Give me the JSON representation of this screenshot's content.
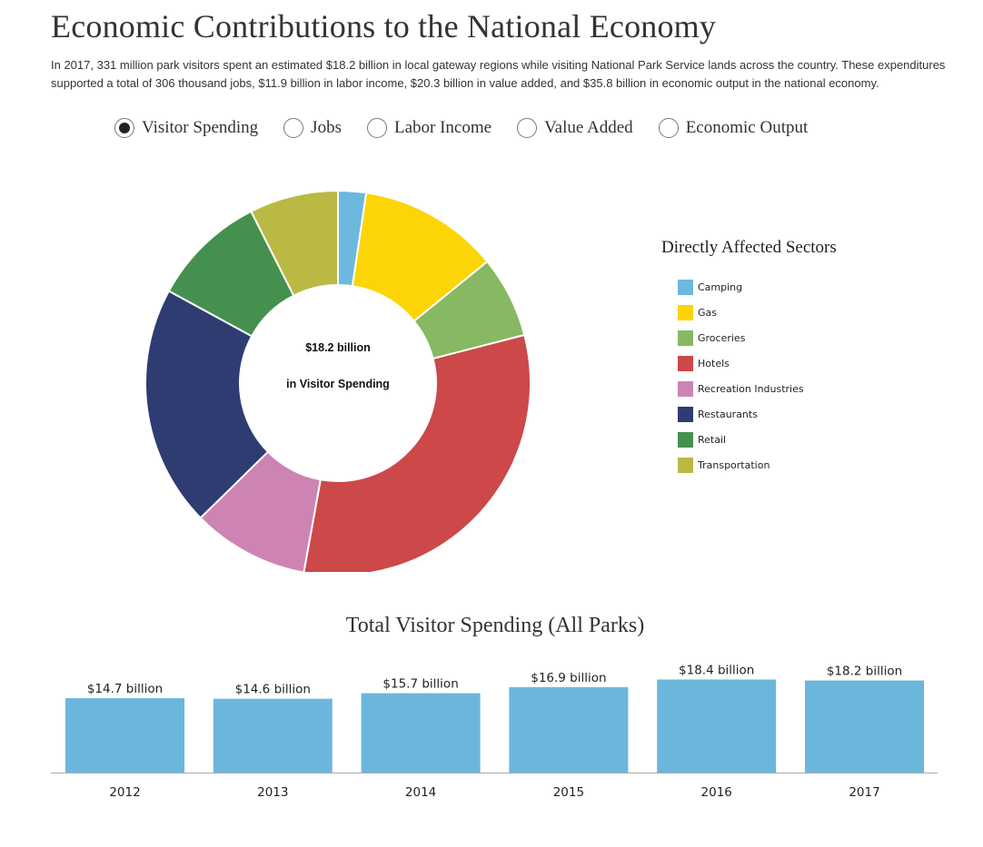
{
  "page": {
    "title": "Economic Contributions to the National Economy",
    "intro": "In 2017, 331 million park visitors spent an estimated $18.2 billion in local gateway regions while visiting National Park Service lands across the country. These expenditures supported a total of 306 thousand jobs, $11.9 billion in labor income, $20.3 billion in value added, and $35.8 billion in economic output in the national economy."
  },
  "radios": [
    {
      "label": "Visitor Spending",
      "selected": true
    },
    {
      "label": "Jobs",
      "selected": false
    },
    {
      "label": "Labor Income",
      "selected": false
    },
    {
      "label": "Value Added",
      "selected": false
    },
    {
      "label": "Economic Output",
      "selected": false
    }
  ],
  "chart_data": [
    {
      "type": "pie",
      "variant": "donut",
      "center_text": [
        "$18.2 billion",
        "in Visitor Spending"
      ],
      "legend_title": "Directly Affected Sectors",
      "legend_position": "right",
      "slices": [
        {
          "label": "Camping",
          "value": 2.4,
          "color": "#6cb8de"
        },
        {
          "label": "Gas",
          "value": 12.0,
          "color": "#fdd405"
        },
        {
          "label": "Groceries",
          "value": 7.0,
          "color": "#86b961"
        },
        {
          "label": "Hotels",
          "value": 32.5,
          "color": "#cc4849"
        },
        {
          "label": "Recreation Industries",
          "value": 10.0,
          "color": "#cd84b2"
        },
        {
          "label": "Restaurants",
          "value": 20.7,
          "color": "#2f3c72"
        },
        {
          "label": "Retail",
          "value": 9.8,
          "color": "#46904f"
        },
        {
          "label": "Transportation",
          "value": 7.6,
          "color": "#bab943"
        }
      ]
    },
    {
      "type": "bar",
      "title": "Total Visitor Spending (All Parks)",
      "categories": [
        "2012",
        "2013",
        "2014",
        "2015",
        "2016",
        "2017"
      ],
      "values": [
        14.7,
        14.6,
        15.7,
        16.9,
        18.4,
        18.2
      ],
      "value_labels": [
        "$14.7 billion",
        "$14.6 billion",
        "$15.7 billion",
        "$16.9 billion",
        "$18.4 billion",
        "$18.2 billion"
      ],
      "unit": "billion USD",
      "color": "#6bb7db",
      "xlabel": "",
      "ylabel": ""
    }
  ]
}
